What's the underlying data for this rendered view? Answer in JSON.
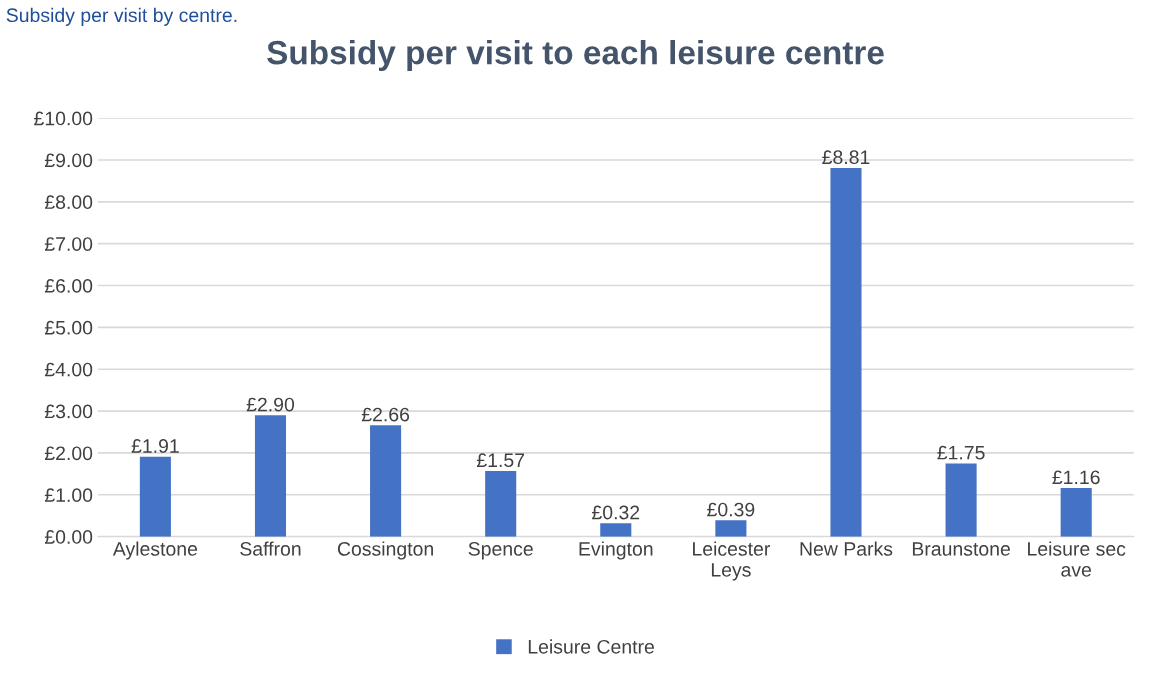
{
  "chart_data": {
    "type": "bar",
    "title": "Subsidy per visit to each leisure centre",
    "categories": [
      "Aylestone",
      "Saffron",
      "Cossington",
      "Spence",
      "Evington",
      "Leicester Leys",
      "New Parks",
      "Braunstone",
      "Leisure sec ave"
    ],
    "series": [
      {
        "name": "Leisure Centre",
        "color": "#4472c4",
        "values": [
          1.91,
          2.9,
          2.66,
          1.57,
          0.32,
          0.39,
          8.81,
          1.75,
          1.16
        ],
        "value_labels": [
          "£1.91",
          "£2.90",
          "£2.66",
          "£1.57",
          "£0.32",
          "£0.39",
          "£8.81",
          "£1.75",
          "£1.16"
        ]
      }
    ],
    "ylim": [
      0,
      10
    ],
    "yticks": [
      {
        "value": 0,
        "label": "£0.00"
      },
      {
        "value": 1,
        "label": "£1.00"
      },
      {
        "value": 2,
        "label": "£2.00"
      },
      {
        "value": 3,
        "label": "£3.00"
      },
      {
        "value": 4,
        "label": "£4.00"
      },
      {
        "value": 5,
        "label": "£5.00"
      },
      {
        "value": 6,
        "label": "£6.00"
      },
      {
        "value": 7,
        "label": "£7.00"
      },
      {
        "value": 8,
        "label": "£8.00"
      },
      {
        "value": 9,
        "label": "£9.00"
      },
      {
        "value": 10,
        "label": "£10.00"
      }
    ],
    "grid": "y",
    "legend": "bottom",
    "annotations": [
      "Subsidy per visit by centre."
    ]
  }
}
